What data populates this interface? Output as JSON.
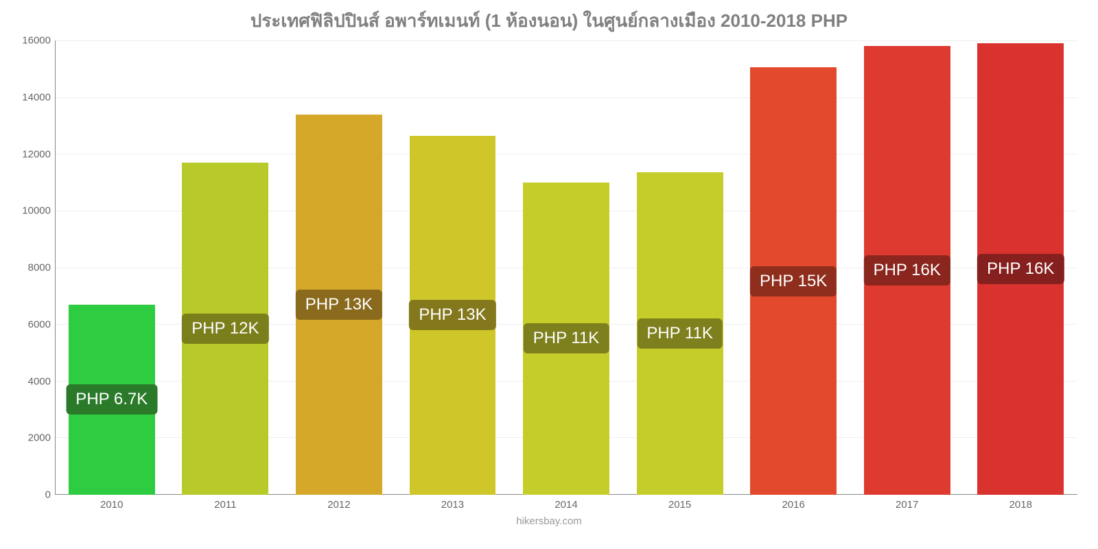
{
  "chart": {
    "type": "bar",
    "title": "ประเทศฟิลิปปินส์ อพาร์ทเมนท์ (1 ห้องนอน) ในศูนย์กลางเมือง 2010-2018 PHP",
    "title_color": "#808080",
    "title_fontsize": 26,
    "background_color": "#ffffff",
    "footer": "hikersbay.com",
    "footer_color": "#999999",
    "y_axis": {
      "min": 0,
      "max": 16000,
      "tick_step": 2000,
      "ticks": [
        "0",
        "2000",
        "4000",
        "6000",
        "8000",
        "10000",
        "12000",
        "14000",
        "16000"
      ],
      "tick_color": "#666666",
      "grid_color": "#eeeeee"
    },
    "x_axis": {
      "categories": [
        "2010",
        "2011",
        "2012",
        "2013",
        "2014",
        "2015",
        "2016",
        "2017",
        "2018"
      ],
      "tick_color": "#666666"
    },
    "bars": [
      {
        "value": 6700,
        "color": "#2ecc40",
        "label": "PHP 6.7K",
        "label_bg": "#2a7a2a"
      },
      {
        "value": 11700,
        "color": "#b8c92a",
        "label": "PHP 12K",
        "label_bg": "#7a7f1c"
      },
      {
        "value": 13400,
        "color": "#d6a82a",
        "label": "PHP 13K",
        "label_bg": "#8a6a1c"
      },
      {
        "value": 12650,
        "color": "#cfc62a",
        "label": "PHP 13K",
        "label_bg": "#83781c"
      },
      {
        "value": 11000,
        "color": "#c4cd2a",
        "label": "PHP 11K",
        "label_bg": "#7d801c"
      },
      {
        "value": 11350,
        "color": "#c4cd2a",
        "label": "PHP 11K",
        "label_bg": "#7d801c"
      },
      {
        "value": 15050,
        "color": "#e2492d",
        "label": "PHP 15K",
        "label_bg": "#8f2e1c"
      },
      {
        "value": 15800,
        "color": "#de3a2f",
        "label": "PHP 16K",
        "label_bg": "#8a261e"
      },
      {
        "value": 15900,
        "color": "#d9322f",
        "label": "PHP 16K",
        "label_bg": "#86201e"
      }
    ],
    "bar_width_ratio": 0.76,
    "label_fontsize": 24
  }
}
